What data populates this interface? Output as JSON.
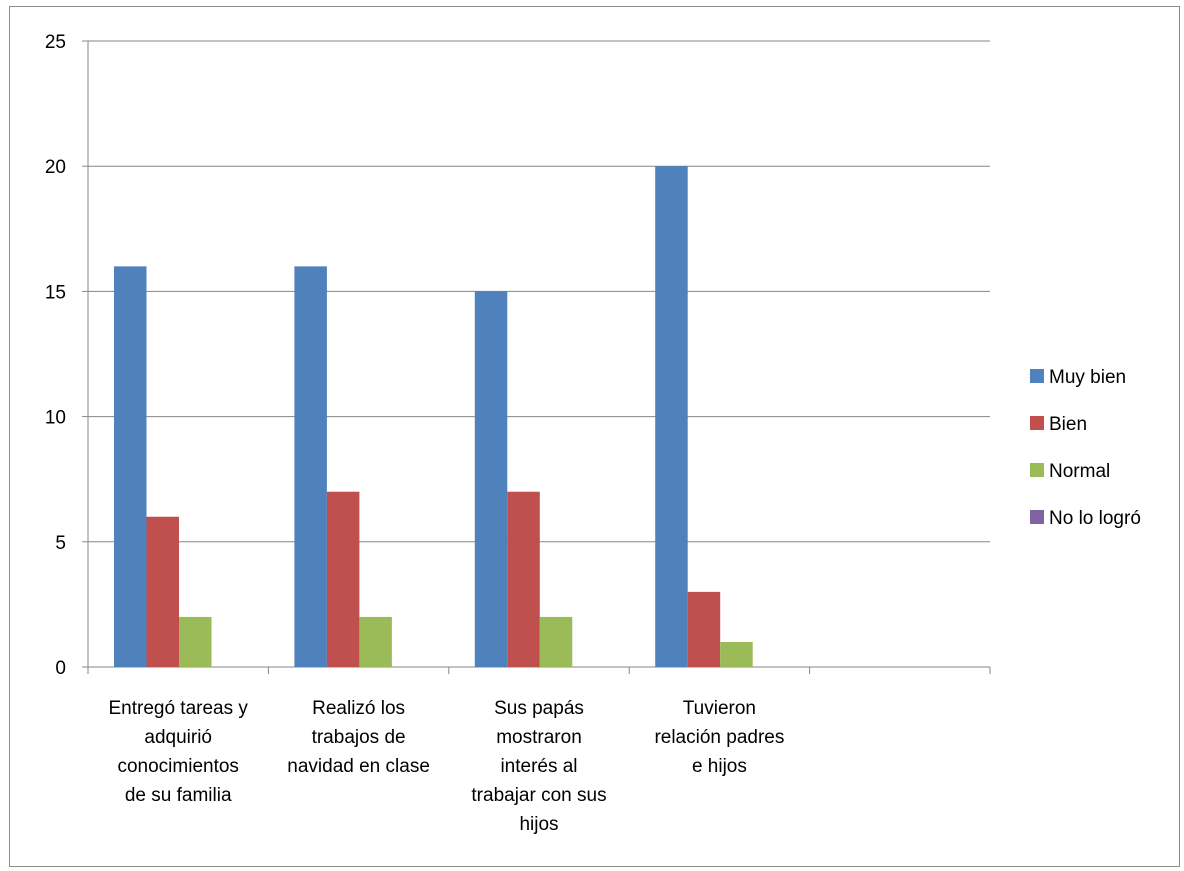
{
  "chart_data": {
    "type": "bar",
    "categories": [
      "Entregó tareas y adquirió conocimientos de su familia",
      "Realizó los trabajos de navidad en clase",
      "Sus papás mostraron interés al trabajar con sus hijos",
      "Tuvieron relación padres e hijos",
      ""
    ],
    "category_lines": [
      [
        "Entregó tareas y",
        "adquirió",
        "conocimientos",
        "de su familia"
      ],
      [
        "Realizó los",
        "trabajos de",
        "navidad en clase"
      ],
      [
        "Sus papás",
        "mostraron",
        "interés al",
        "trabajar con sus",
        "hijos"
      ],
      [
        "Tuvieron",
        "relación padres",
        "e hijos"
      ],
      []
    ],
    "series": [
      {
        "name": "Muy bien",
        "color": "#4f81bd",
        "values": [
          16,
          16,
          15,
          20,
          null
        ]
      },
      {
        "name": "Bien",
        "color": "#c0504d",
        "values": [
          6,
          7,
          7,
          3,
          null
        ]
      },
      {
        "name": "Normal",
        "color": "#9bbb59",
        "values": [
          2,
          2,
          2,
          1,
          null
        ]
      },
      {
        "name": "No lo logró",
        "color": "#8064a2",
        "values": [
          null,
          null,
          null,
          null,
          null
        ]
      }
    ],
    "ylim": [
      0,
      25
    ],
    "yticks": [
      0,
      5,
      10,
      15,
      20,
      25
    ],
    "grid": true,
    "legend_position": "right"
  }
}
